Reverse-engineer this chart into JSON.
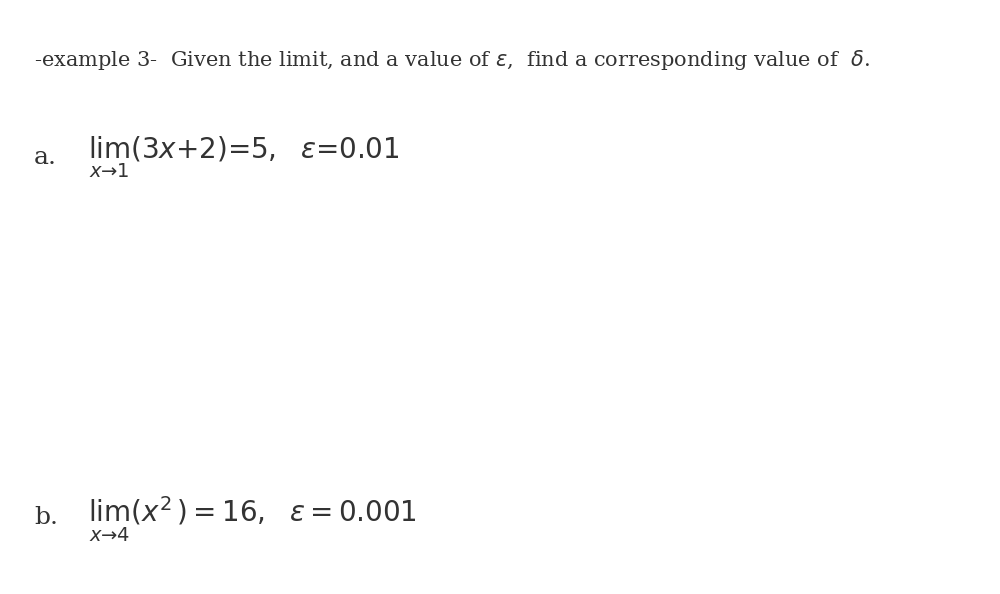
{
  "title_line": "-example 3-  Given the limit, and a value of $\\varepsilon$,  find a corresponding value of  $\\delta$.",
  "part_a_label": "a.",
  "part_a_math": "$\\lim_{x \\to 1}(3x+2) = 5, \\ \\ \\varepsilon = 0.01$",
  "part_b_label": "b.",
  "part_b_math": "$\\lim_{x \\to 4}(x^2) = 16, \\ \\ \\varepsilon = 0.001$",
  "bg_color": "#ffffff",
  "text_color": "#333333",
  "title_fontsize": 15,
  "label_fontsize": 18,
  "math_fontsize": 20
}
